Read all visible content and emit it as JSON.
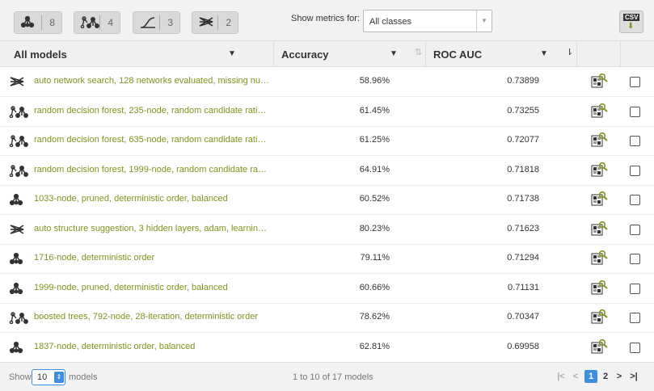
{
  "toolbar": {
    "filters": [
      8,
      4,
      3,
      2
    ],
    "metrics_label": "Show metrics for:",
    "metrics_select": "All classes",
    "csv": "CSV"
  },
  "table": {
    "columns": [
      "All models",
      "Accuracy",
      "ROC AUC"
    ],
    "rows": [
      [
        "auto network search, 128 networks evaluated, missing nu…",
        "58.96%",
        "0.73899"
      ],
      [
        "random decision forest, 235-node, random candidate rati…",
        "61.45%",
        "0.73255"
      ],
      [
        "random decision forest, 635-node, random candidate rati…",
        "61.25%",
        "0.72077"
      ],
      [
        "random decision forest, 1999-node, random candidate ra…",
        "64.91%",
        "0.71818"
      ],
      [
        "1033-node, pruned, deterministic order, balanced",
        "60.52%",
        "0.71738"
      ],
      [
        "auto structure suggestion, 3 hidden layers, adam, learnin…",
        "80.23%",
        "0.71623"
      ],
      [
        "1716-node, deterministic order",
        "79.11%",
        "0.71294"
      ],
      [
        "1999-node, pruned, deterministic order, balanced",
        "60.66%",
        "0.71131"
      ],
      [
        "boosted trees, 792-node, 28-iteration, deterministic order",
        "78.62%",
        "0.70347"
      ],
      [
        "1837-node, deterministic order, balanced",
        "62.81%",
        "0.69958"
      ]
    ]
  },
  "footer": {
    "show": "Show",
    "page_size": "10",
    "models": "models",
    "range": "1 to 10 of 17 models",
    "pages": [
      "1",
      "2"
    ]
  }
}
